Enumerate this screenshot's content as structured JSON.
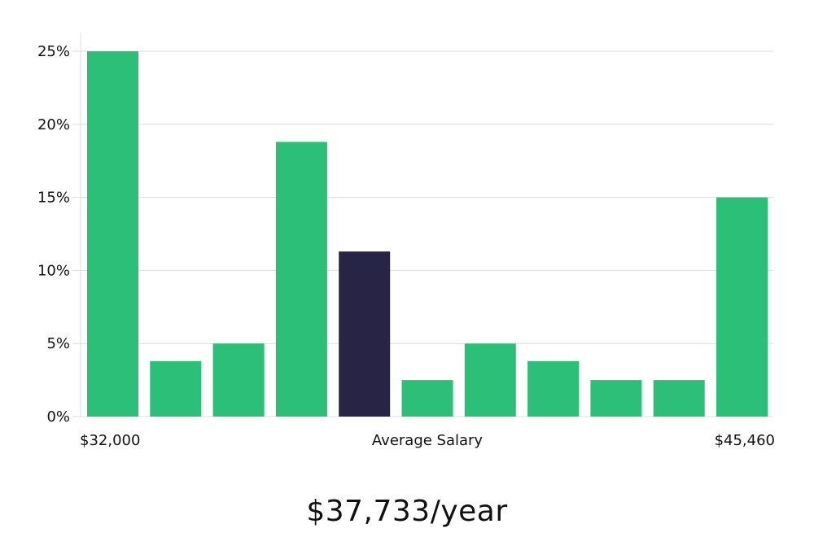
{
  "chart_data": {
    "type": "bar",
    "categories": [
      "1",
      "2",
      "3",
      "4",
      "5",
      "6",
      "7",
      "8",
      "9",
      "10",
      "11"
    ],
    "values": [
      25.0,
      3.8,
      5.0,
      18.8,
      11.3,
      2.5,
      5.0,
      3.8,
      2.5,
      2.5,
      15.0
    ],
    "highlight_index": 4,
    "ylim": [
      0,
      25
    ],
    "yticks": [
      "0%",
      "5%",
      "10%",
      "15%",
      "20%",
      "25%"
    ],
    "ytick_values": [
      0,
      5,
      10,
      15,
      20,
      25
    ],
    "x_axis_labels": {
      "left": "$32,000",
      "center": "Average Salary",
      "right": "$45,460"
    },
    "grid": true,
    "colors": {
      "bar": "#2bbf77",
      "highlight": "#282446",
      "grid": "#dcdcdc"
    }
  },
  "summary": {
    "salary_text": "$37,733/year"
  }
}
